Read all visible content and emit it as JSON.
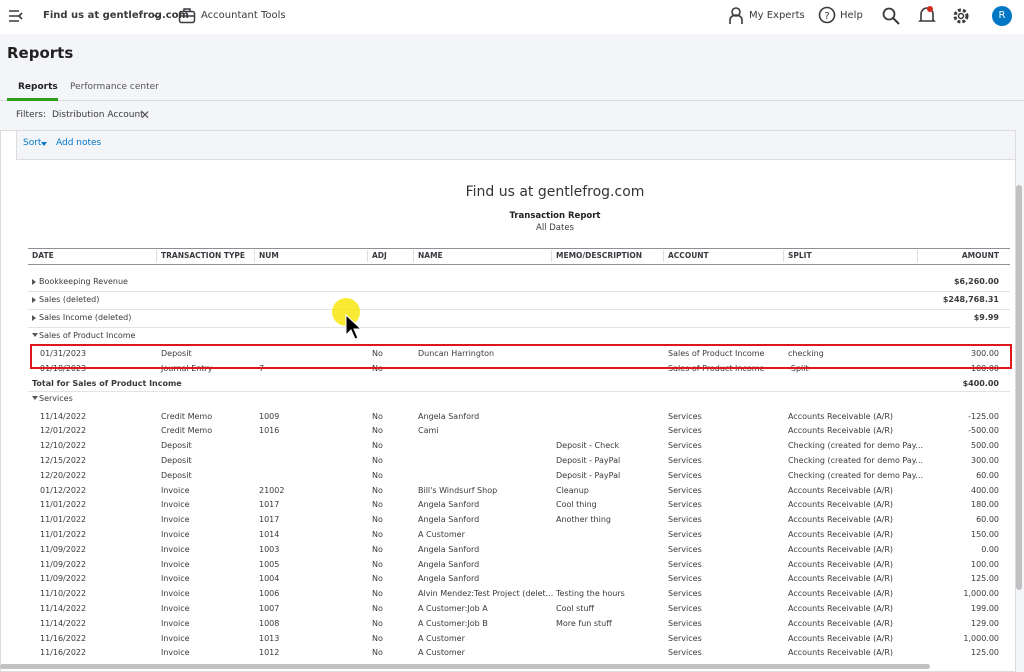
{
  "topbar": {
    "company": "Find us at gentlefrog.com",
    "tools": "Accountant Tools",
    "experts": "My Experts",
    "help": "Help",
    "avatar": "R"
  },
  "page_title": "Reports",
  "tabs": [
    "Reports",
    "Performance center"
  ],
  "filters": {
    "label": "Filters:",
    "chip": "Distribution Account"
  },
  "toolbar": {
    "sort": "Sort",
    "notes": "Add notes"
  },
  "report": {
    "company": "Find us at gentlefrog.com",
    "title": "Transaction Report",
    "period": "All Dates",
    "columns": [
      "DATE",
      "TRANSACTION TYPE",
      "NUM",
      "ADJ",
      "NAME",
      "MEMO/DESCRIPTION",
      "ACCOUNT",
      "SPLIT",
      "AMOUNT"
    ],
    "sections": [
      {
        "name": "Bookkeeping Revenue",
        "amount": "$6,260.00"
      },
      {
        "name": "Sales (deleted)",
        "amount": "$248,768.31"
      },
      {
        "name": "Sales Income (deleted)",
        "amount": "$9.99"
      },
      {
        "name": "Sales of Product Income",
        "rows": [
          {
            "date": "01/31/2023",
            "type": "Deposit",
            "adj": "No",
            "name": "Duncan Harrington",
            "account": "Sales of Product Income",
            "split": "checking",
            "amount": "300.00"
          },
          {
            "date": "01/18/2023",
            "type": "Journal Entry",
            "num": "7",
            "adj": "No",
            "account": "Sales of Product Income",
            "split": "-Split-",
            "amount": "100.00"
          }
        ],
        "total_label": "Total for Sales of Product Income",
        "total": "$400.00"
      },
      {
        "name": "Services",
        "rows": [
          {
            "date": "11/14/2022",
            "type": "Credit Memo",
            "num": "1009",
            "adj": "No",
            "name": "Angela Sanford",
            "account": "Services",
            "split": "Accounts Receivable (A/R)",
            "amount": "-125.00"
          },
          {
            "date": "12/01/2022",
            "type": "Credit Memo",
            "num": "1016",
            "adj": "No",
            "name": "Cami",
            "account": "Services",
            "split": "Accounts Receivable (A/R)",
            "amount": "-500.00"
          },
          {
            "date": "12/10/2022",
            "type": "Deposit",
            "adj": "No",
            "memo": "Deposit - Check",
            "account": "Services",
            "split": "Checking (created for demo Pay...",
            "amount": "500.00"
          },
          {
            "date": "12/15/2022",
            "type": "Deposit",
            "adj": "No",
            "memo": "Deposit - PayPal",
            "account": "Services",
            "split": "Checking (created for demo Pay...",
            "amount": "300.00"
          },
          {
            "date": "12/20/2022",
            "type": "Deposit",
            "adj": "No",
            "memo": "Deposit - PayPal",
            "account": "Services",
            "split": "Checking (created for demo Pay...",
            "amount": "60.00"
          },
          {
            "date": "01/12/2022",
            "type": "Invoice",
            "num": "21002",
            "adj": "No",
            "name": "Bill's Windsurf Shop",
            "memo": "Cleanup",
            "account": "Services",
            "split": "Accounts Receivable (A/R)",
            "amount": "400.00"
          },
          {
            "date": "11/01/2022",
            "type": "Invoice",
            "num": "1017",
            "adj": "No",
            "name": "Angela Sanford",
            "memo": "Cool thing",
            "account": "Services",
            "split": "Accounts Receivable (A/R)",
            "amount": "180.00"
          },
          {
            "date": "11/01/2022",
            "type": "Invoice",
            "num": "1017",
            "adj": "No",
            "name": "Angela Sanford",
            "memo": "Another thing",
            "account": "Services",
            "split": "Accounts Receivable (A/R)",
            "amount": "60.00"
          },
          {
            "date": "11/01/2022",
            "type": "Invoice",
            "num": "1014",
            "adj": "No",
            "name": "A Customer",
            "account": "Services",
            "split": "Accounts Receivable (A/R)",
            "amount": "150.00"
          },
          {
            "date": "11/09/2022",
            "type": "Invoice",
            "num": "1003",
            "adj": "No",
            "name": "Angela Sanford",
            "account": "Services",
            "split": "Accounts Receivable (A/R)",
            "amount": "0.00"
          },
          {
            "date": "11/09/2022",
            "type": "Invoice",
            "num": "1005",
            "adj": "No",
            "name": "Angela Sanford",
            "account": "Services",
            "split": "Accounts Receivable (A/R)",
            "amount": "100.00"
          },
          {
            "date": "11/09/2022",
            "type": "Invoice",
            "num": "1004",
            "adj": "No",
            "name": "Angela Sanford",
            "account": "Services",
            "split": "Accounts Receivable (A/R)",
            "amount": "125.00"
          },
          {
            "date": "11/10/2022",
            "type": "Invoice",
            "num": "1006",
            "adj": "No",
            "name": "Alvin Mendez:Test Project (delet...",
            "memo": "Testing the hours",
            "account": "Services",
            "split": "Accounts Receivable (A/R)",
            "amount": "1,000.00"
          },
          {
            "date": "11/14/2022",
            "type": "Invoice",
            "num": "1007",
            "adj": "No",
            "name": "A Customer:Job A",
            "memo": "Cool stuff",
            "account": "Services",
            "split": "Accounts Receivable (A/R)",
            "amount": "199.00"
          },
          {
            "date": "11/14/2022",
            "type": "Invoice",
            "num": "1008",
            "adj": "No",
            "name": "A Customer:Job B",
            "memo": "More fun stuff",
            "account": "Services",
            "split": "Accounts Receivable (A/R)",
            "amount": "129.00"
          },
          {
            "date": "11/16/2022",
            "type": "Invoice",
            "num": "1013",
            "adj": "No",
            "name": "A Customer",
            "account": "Services",
            "split": "Accounts Receivable (A/R)",
            "amount": "1,000.00"
          },
          {
            "date": "11/16/2022",
            "type": "Invoice",
            "num": "1012",
            "adj": "No",
            "name": "A Customer",
            "account": "Services",
            "split": "Accounts Receivable (A/R)",
            "amount": "125.00"
          }
        ]
      }
    ]
  }
}
